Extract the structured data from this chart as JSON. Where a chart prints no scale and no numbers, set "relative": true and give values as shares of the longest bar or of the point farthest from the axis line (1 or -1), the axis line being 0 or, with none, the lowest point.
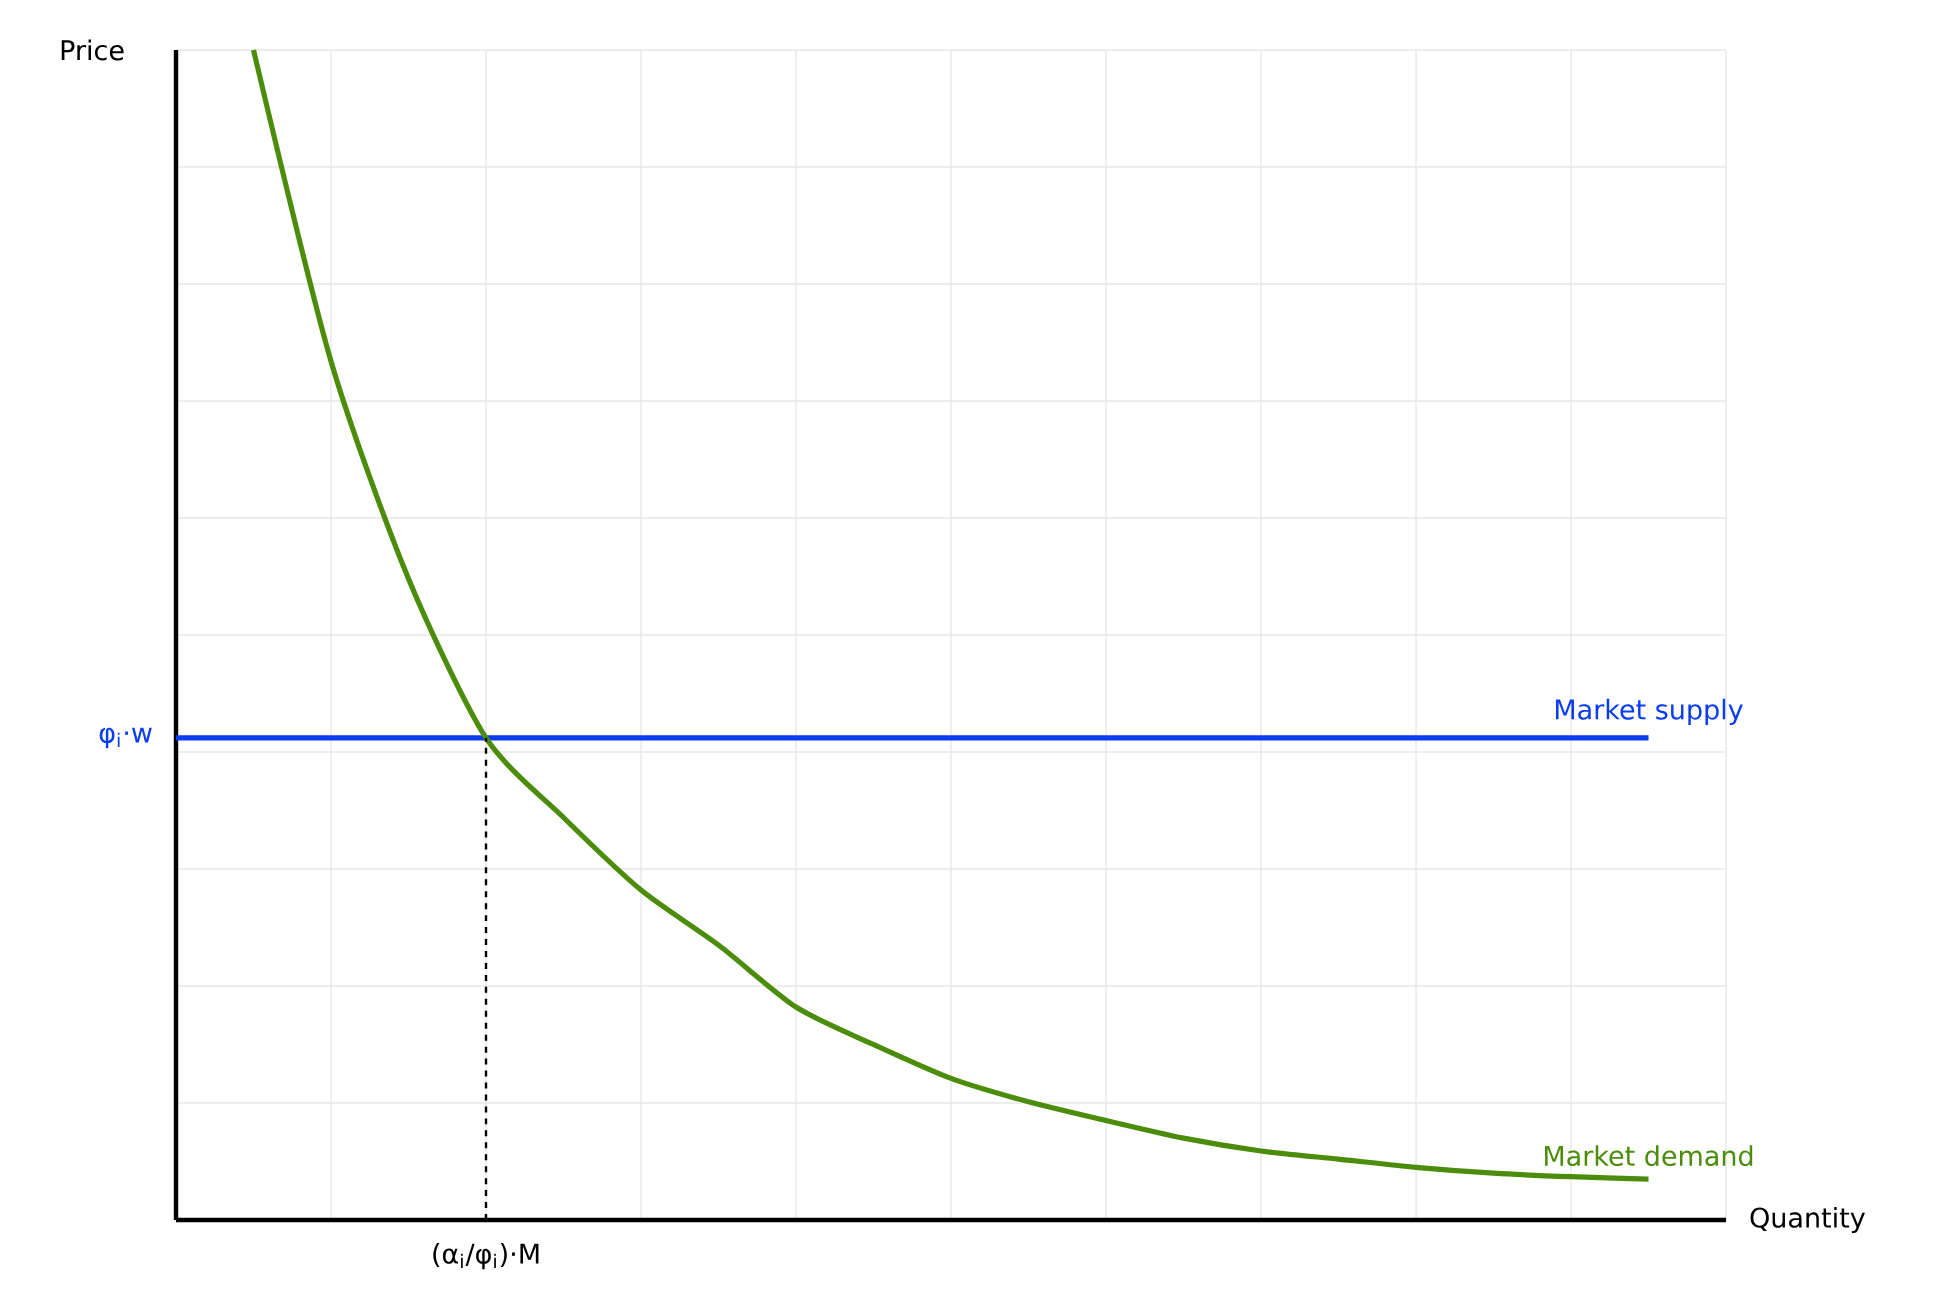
{
  "chart_data": {
    "type": "line",
    "relative": true,
    "xlabel": "Quantity",
    "ylabel": "Price",
    "categories": [
      null,
      null,
      null,
      null,
      null,
      null,
      null,
      null,
      null,
      null,
      null,
      null,
      null,
      null,
      null,
      null,
      null,
      null,
      null,
      null,
      null
    ],
    "series": [
      {
        "name": "Market supply",
        "color": "#0a3cf0",
        "values": [
          0.412,
          0.412,
          0.412,
          0.412,
          0.412,
          0.412,
          0.412,
          0.412,
          0.412,
          0.412,
          0.412,
          0.412,
          0.412,
          0.412,
          0.412,
          0.412,
          0.412,
          0.412,
          0.412,
          0.412,
          null
        ]
      },
      {
        "name": "Market demand",
        "color": "#4b8c0a",
        "values": [
          null,
          1,
          0.734,
          0.548,
          0.412,
          0.344,
          0.282,
          0.235,
          0.182,
          0.15,
          0.121,
          0.101,
          0.085,
          0.07,
          0.059,
          0.052,
          0.045,
          0.04,
          0.037,
          0.035,
          null
        ]
      }
    ],
    "annotations": [
      "φ$_{i}$·w",
      "(α$_{i}$/φ$_{i}$)·M"
    ],
    "grid": true,
    "line_style": "solid"
  }
}
